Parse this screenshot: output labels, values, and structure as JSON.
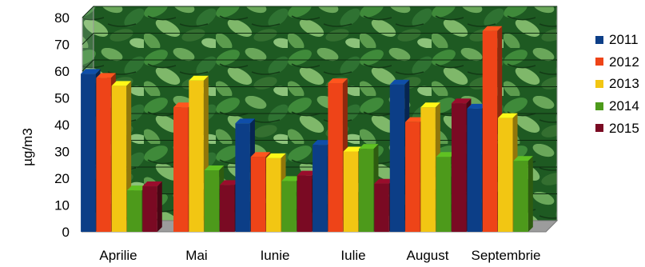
{
  "chart_data": {
    "type": "bar",
    "title": "",
    "xlabel": "",
    "ylabel": "µg/m3",
    "ylim": [
      0,
      80
    ],
    "yticks": [
      0,
      10,
      20,
      30,
      40,
      50,
      60,
      70,
      80
    ],
    "categories": [
      "Aprilie",
      "Mai",
      "Iunie",
      "Iulie",
      "August",
      "Septembrie"
    ],
    "series": [
      {
        "name": "2011",
        "color": "#0c3e87",
        "values": [
          59,
          null,
          40.5,
          32.5,
          55,
          46
        ]
      },
      {
        "name": "2012",
        "color": "#ee4418",
        "values": [
          57.5,
          46.5,
          28,
          55.5,
          41,
          75
        ]
      },
      {
        "name": "2013",
        "color": "#f2c613",
        "values": [
          54.5,
          56.5,
          27.5,
          30,
          46.5,
          42.5
        ]
      },
      {
        "name": "2014",
        "color": "#4d9a1b",
        "values": [
          15.5,
          23,
          19,
          31,
          28,
          26.5
        ]
      },
      {
        "name": "2015",
        "color": "#7a0a23",
        "values": [
          17,
          17.5,
          21,
          18,
          48,
          null
        ]
      }
    ],
    "legend_position": "right",
    "background": "green leaf texture",
    "style": "3d"
  }
}
